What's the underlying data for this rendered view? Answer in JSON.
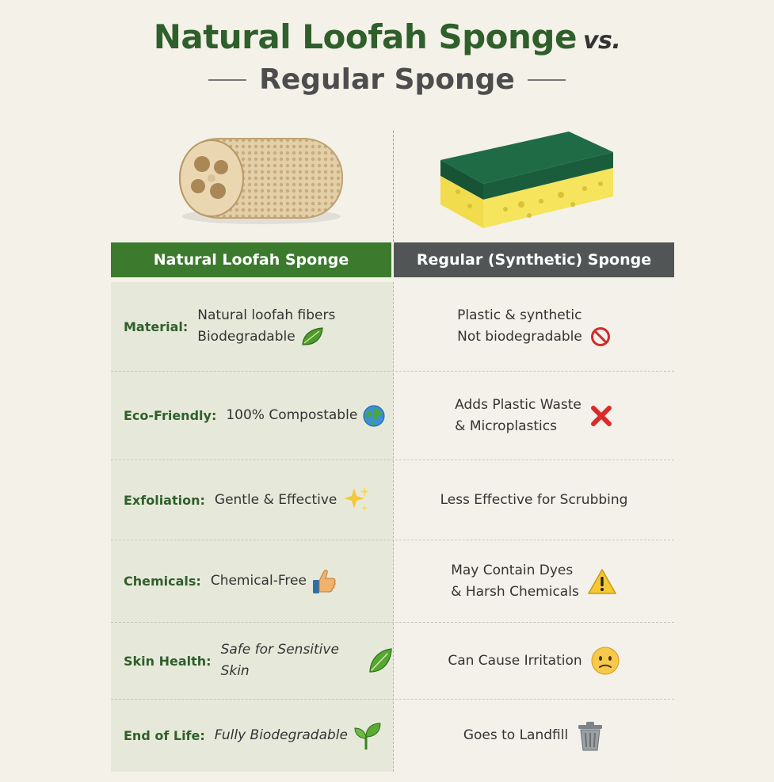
{
  "heading": {
    "title": "Natural Loofah Sponge",
    "vs": "vs.",
    "subtitle": "Regular Sponge"
  },
  "columns": {
    "left": "Natural Loofah Sponge",
    "right": "Regular (Synthetic) Sponge"
  },
  "rows": [
    {
      "label": "Material:",
      "left": [
        "Natural loofah fibers",
        "Biodegradable"
      ],
      "left_icon": "leaf-icon",
      "right": [
        "Plastic & synthetic",
        "Not biodegradable"
      ],
      "right_icon": "prohibited-icon"
    },
    {
      "label": "Eco-Friendly:",
      "left": [
        "100% Compostable"
      ],
      "left_icon": "globe-icon",
      "right": [
        "Adds Plastic Waste",
        "& Microplastics"
      ],
      "right_icon": "cross-mark-icon"
    },
    {
      "label": "Exfoliation:",
      "left": [
        "Gentle & Effective"
      ],
      "left_icon": "sparkles-icon",
      "right": [
        "Less Effective for Scrubbing"
      ],
      "right_icon": ""
    },
    {
      "label": "Chemicals:",
      "left": [
        "Chemical-Free"
      ],
      "left_icon": "thumbs-up-icon",
      "right": [
        "May Contain Dyes",
        "& Harsh Chemicals"
      ],
      "right_icon": "warning-icon"
    },
    {
      "label": "Skin Health:",
      "left": [
        "Safe for Sensitive Skin"
      ],
      "left_icon": "leaf-icon",
      "right": [
        "Can Cause Irritation"
      ],
      "right_icon": "worried-face-icon"
    },
    {
      "label": "End of Life:",
      "left": [
        "Fully Biodegradable"
      ],
      "left_icon": "seedling-icon",
      "right": [
        "Goes to Landfill"
      ],
      "right_icon": "trash-can-icon"
    }
  ],
  "colors": {
    "brand_green": "#2f5f2b",
    "header_green": "#3c7a2e",
    "header_gray": "#515555",
    "background": "#f4f1e9"
  }
}
